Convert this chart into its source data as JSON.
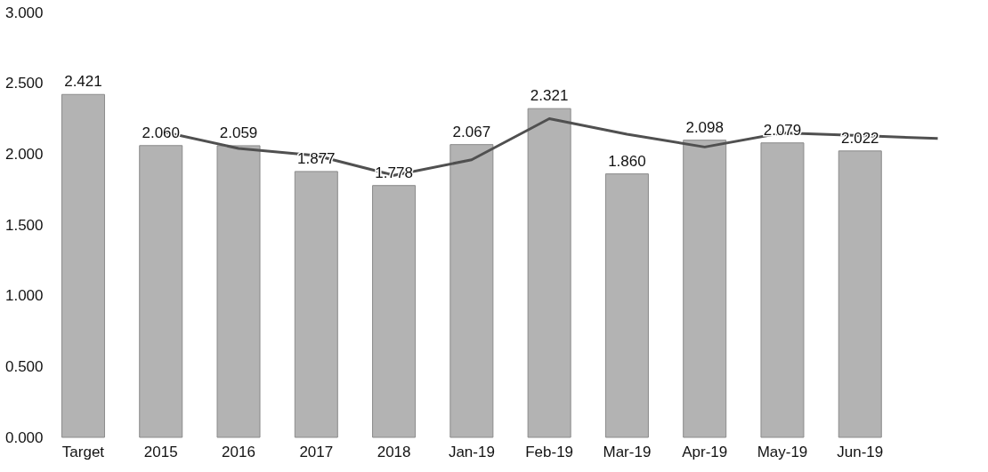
{
  "chart_data": {
    "type": "bar",
    "categories": [
      "Target",
      "2015",
      "2016",
      "2017",
      "2018",
      "Jan-19",
      "Feb-19",
      "Mar-19",
      "Apr-19",
      "May-19",
      "Jun-19",
      null
    ],
    "series": [
      {
        "color": "#b3b3b3",
        "values": [
          2.421,
          2.06,
          2.059,
          1.877,
          1.778,
          2.067,
          2.321,
          1.86,
          2.098,
          2.079,
          2.022,
          null
        ],
        "value_labels": [
          "2.421",
          "2.060",
          "2.059",
          "1.877",
          "1.778",
          "2.067",
          "2.321",
          "1.860",
          "2.098",
          "2.079",
          "2.022",
          null
        ]
      },
      {
        "type": "line",
        "color": "#505050",
        "values": [
          null,
          2.16,
          2.04,
          1.99,
          1.85,
          1.96,
          2.25,
          2.14,
          2.05,
          2.15,
          2.13,
          2.11
        ]
      }
    ],
    "ylim": [
      0,
      3
    ],
    "yticks": [
      {
        "value": 0,
        "label": "0.000"
      },
      {
        "value": 0.5,
        "label": "0.500"
      },
      {
        "value": 1,
        "label": "1.000"
      },
      {
        "value": 1.5,
        "label": "1.500"
      },
      {
        "value": 2,
        "label": "2.000"
      },
      {
        "value": 2.5,
        "label": "2.500"
      },
      {
        "value": 3,
        "label": "3.000"
      }
    ],
    "grid": false,
    "marker": "none",
    "line_style": "solid"
  }
}
